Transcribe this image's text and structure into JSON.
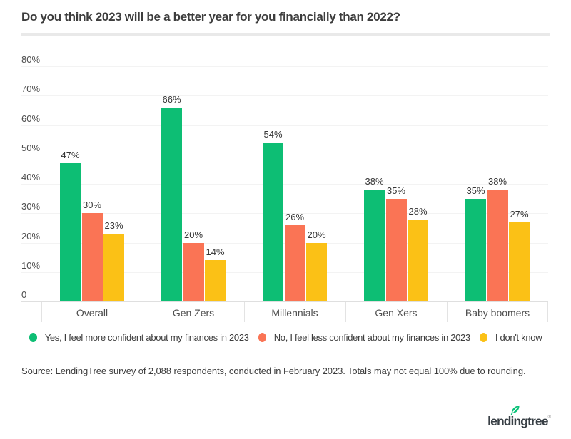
{
  "title": "Do you think 2023 will be a better year for you financially than 2022?",
  "chart_data": {
    "type": "bar",
    "title": "Do you think 2023 will be a better year for you financially than 2022?",
    "categories": [
      "Overall",
      "Gen Zers",
      "Millennials",
      "Gen Xers",
      "Baby boomers"
    ],
    "series": [
      {
        "name": "Yes, I feel more confident about my finances in 2023",
        "color": "#0dbe74",
        "values": [
          47,
          66,
          54,
          38,
          35
        ]
      },
      {
        "name": "No, I feel less confident about my finances in 2023",
        "color": "#fa7455",
        "values": [
          30,
          20,
          26,
          35,
          38
        ]
      },
      {
        "name": "I don't know",
        "color": "#fbc116",
        "values": [
          23,
          14,
          20,
          28,
          27
        ]
      }
    ],
    "xlabel": "",
    "ylabel": "",
    "ylim": [
      0,
      80
    ],
    "yticks": [
      "80%",
      "70%",
      "60%",
      "50%",
      "40%",
      "30%",
      "20%",
      "10%",
      "0"
    ],
    "value_suffix": "%",
    "grid": true,
    "legend_position": "bottom"
  },
  "source": "Source: LendingTree survey of 2,088 respondents, conducted in February 2023. Totals may not equal 100% due to rounding.",
  "logo": {
    "text": "lendingtree",
    "reg_mark": "®",
    "leaf_color": "#08c177",
    "text_color": "#383f45"
  },
  "colors": {
    "yes": "#0dbe74",
    "no": "#fa7455",
    "dont_know": "#fbc116",
    "gridline": "#f3f3f3",
    "axis_line": "#dfdfdf",
    "title_text": "#3d3d3d"
  }
}
